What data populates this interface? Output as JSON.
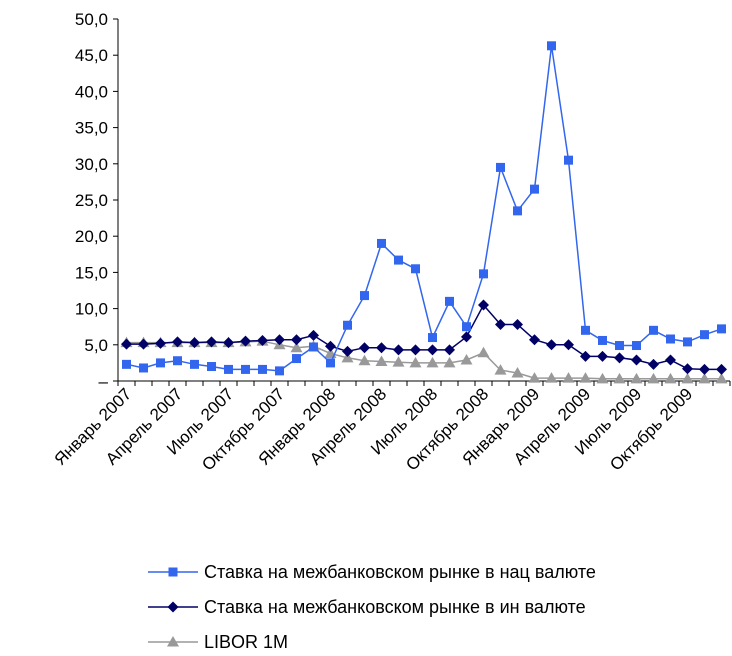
{
  "chart_data": {
    "type": "line",
    "title": "",
    "xlabel": "",
    "ylabel": "",
    "ylim": [
      0,
      50
    ],
    "yticks": [
      "–",
      "5,0",
      "10,0",
      "15,0",
      "20,0",
      "25,0",
      "30,0",
      "35,0",
      "40,0",
      "45,0",
      "50,0"
    ],
    "x_labels": [
      "Январь 2007",
      "Апрель 2007",
      "Июль 2007",
      "Октябрь 2007",
      "Январь 2008",
      "Апрель 2008",
      "Июль 2008",
      "Октябрь 2008",
      "Январь 2009",
      "Апрель 2009",
      "Июль 2009",
      "Октябрь 2009"
    ],
    "label_every": 3,
    "grid": false,
    "legend_position": "bottom",
    "series": [
      {
        "name": "Ставка на межбанковском рынке в нац валюте",
        "color": "#3366ee",
        "marker": "square",
        "values": [
          2.3,
          1.8,
          2.5,
          2.8,
          2.3,
          2.0,
          1.6,
          1.6,
          1.6,
          1.4,
          3.1,
          4.7,
          2.5,
          7.7,
          11.8,
          19.0,
          16.7,
          15.5,
          6.0,
          11.0,
          7.5,
          14.8,
          29.5,
          23.5,
          26.5,
          46.3,
          30.5,
          7.0,
          5.6,
          4.9,
          4.9,
          7.0,
          5.8,
          5.4,
          6.4,
          7.2
        ]
      },
      {
        "name": "Ставка на межбанковском рынке в ин валюте",
        "color": "#000066",
        "marker": "diamond",
        "values": [
          5.1,
          5.1,
          5.2,
          5.4,
          5.3,
          5.4,
          5.3,
          5.5,
          5.6,
          5.7,
          5.7,
          6.3,
          4.8,
          4.1,
          4.6,
          4.6,
          4.3,
          4.3,
          4.3,
          4.3,
          6.1,
          10.5,
          7.8,
          7.8,
          5.7,
          5.0,
          5.0,
          3.4,
          3.4,
          3.2,
          2.9,
          2.3,
          2.9,
          1.7,
          1.6,
          1.6
        ]
      },
      {
        "name": "LIBOR 1M",
        "color": "#999999",
        "marker": "triangle",
        "values": [
          5.3,
          5.3,
          5.3,
          5.3,
          5.3,
          5.3,
          5.3,
          5.4,
          5.5,
          5.0,
          4.6,
          4.8,
          3.8,
          3.2,
          2.8,
          2.7,
          2.6,
          2.5,
          2.5,
          2.5,
          2.9,
          3.9,
          1.5,
          1.1,
          0.4,
          0.4,
          0.4,
          0.4,
          0.3,
          0.3,
          0.3,
          0.3,
          0.3,
          0.3,
          0.3,
          0.3
        ]
      }
    ]
  }
}
